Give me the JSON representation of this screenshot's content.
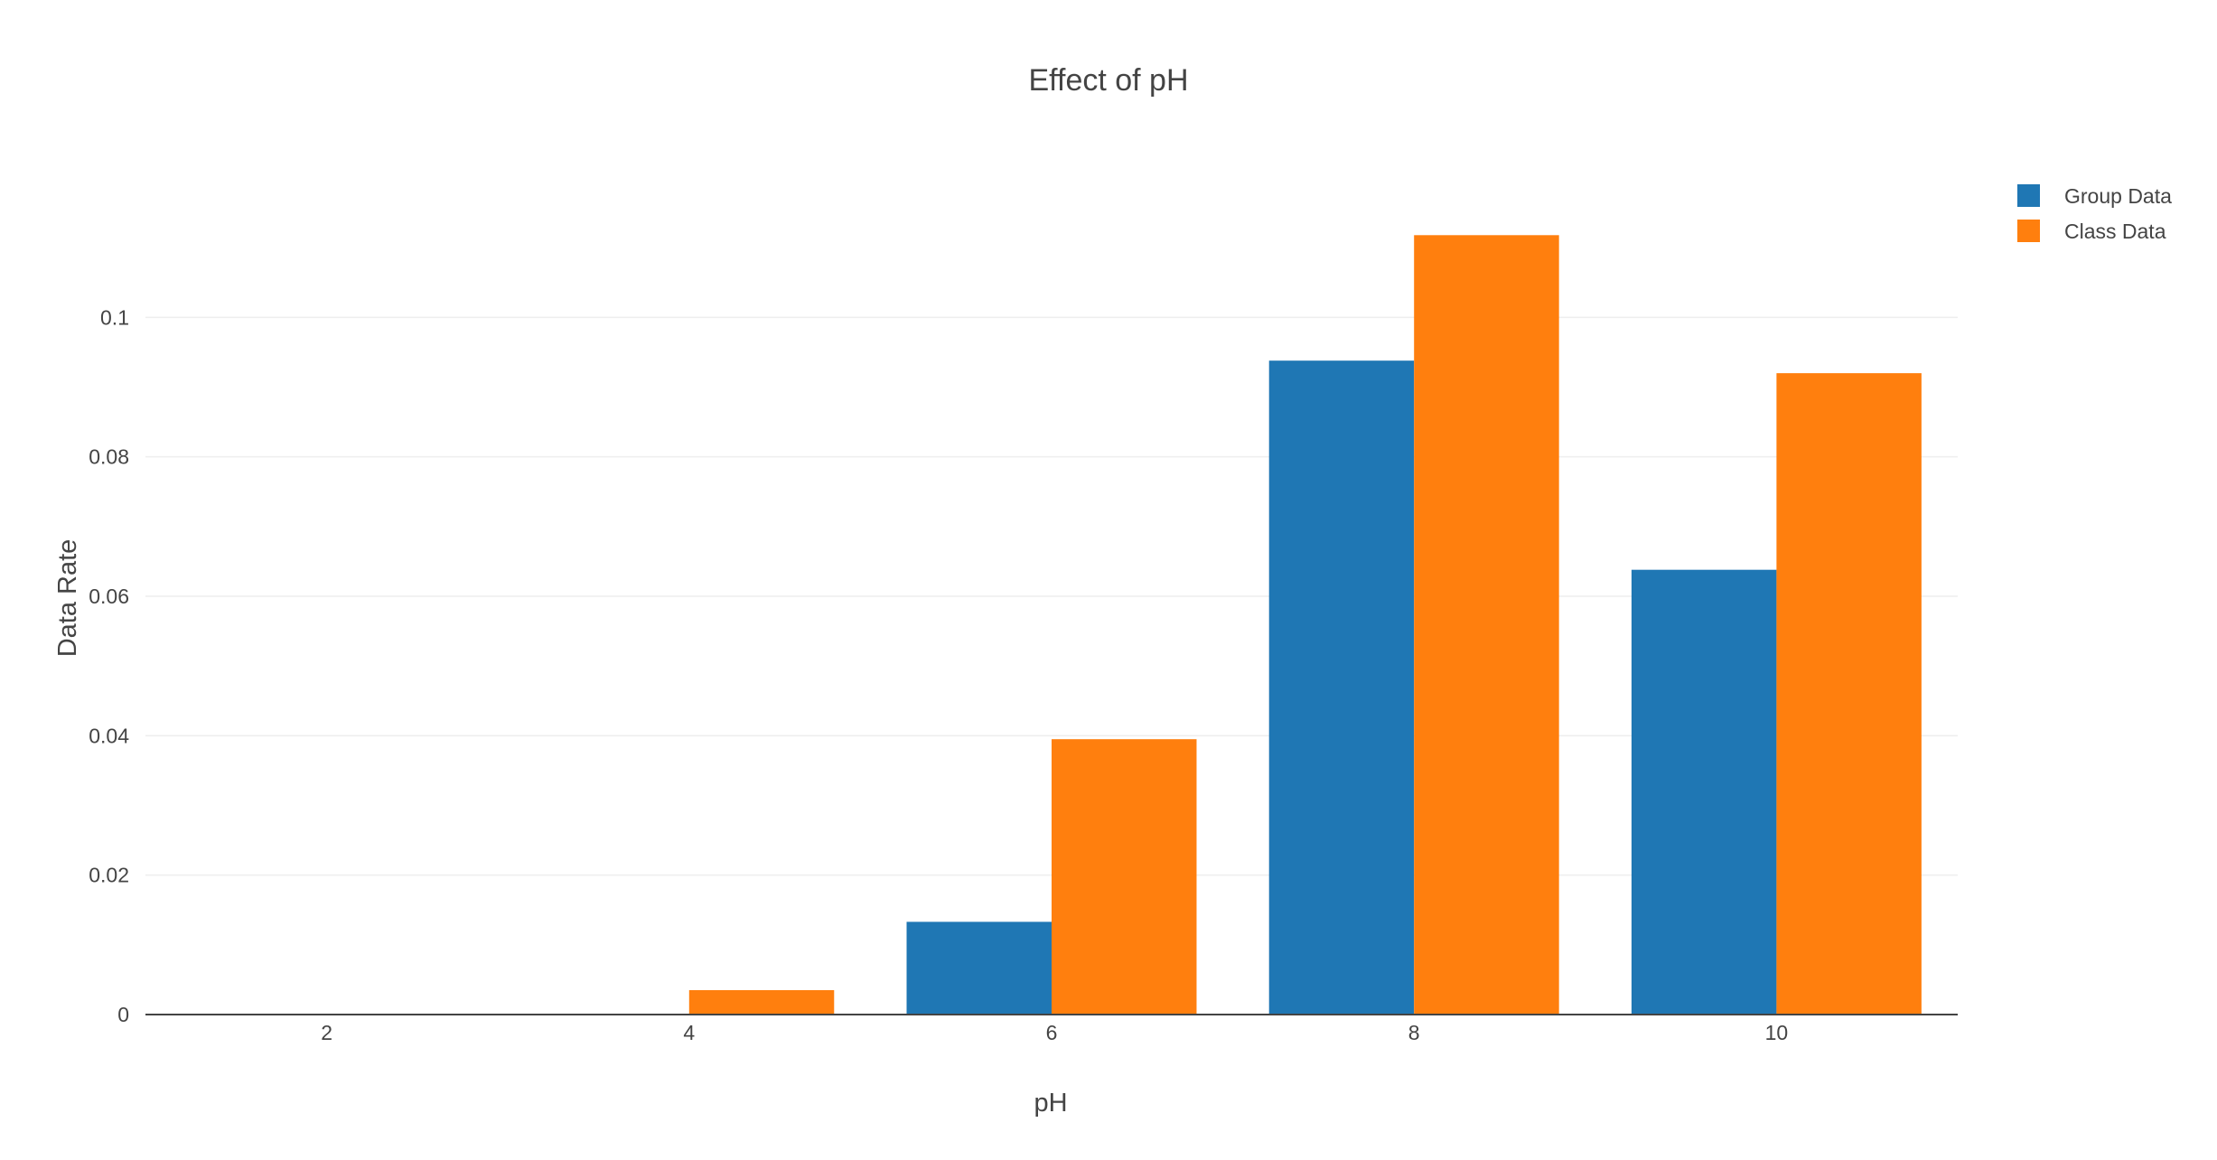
{
  "chart_data": {
    "type": "bar",
    "title": "Effect of pH",
    "xlabel": "pH",
    "ylabel": "Data Rate",
    "x": [
      2,
      4,
      6,
      8,
      10
    ],
    "x_ticks": [
      "2",
      "4",
      "6",
      "8",
      "10"
    ],
    "y_ticks": [
      "0",
      "0.02",
      "0.04",
      "0.06",
      "0.08",
      "0.1"
    ],
    "y_tick_values": [
      0,
      0.02,
      0.04,
      0.06,
      0.08,
      0.1
    ],
    "xlim": [
      1,
      11
    ],
    "ylim": [
      0,
      0.1178
    ],
    "grid": true,
    "legend_position": "top-right",
    "series": [
      {
        "name": "Group Data",
        "color": "#1f77b4",
        "values": [
          0,
          0,
          0.0133,
          0.0938,
          0.0638
        ]
      },
      {
        "name": "Class Data",
        "color": "#ff7f0e",
        "values": [
          0,
          0.0035,
          0.0395,
          0.1118,
          0.092
        ]
      }
    ]
  }
}
